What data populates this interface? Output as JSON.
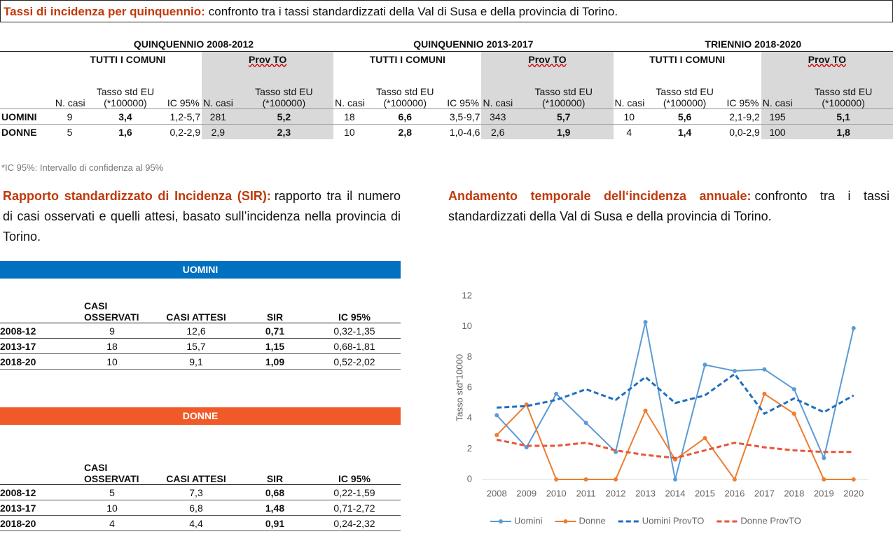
{
  "header": {
    "title": "Tassi di incidenza per quinquennio:",
    "text": "confronto tra i tassi standardizzati della Val di Susa e della provincia di Torino."
  },
  "incidence_table": {
    "periods": [
      "QUINQUENNIO 2008-2012",
      "QUINQUENNIO 2013-2017",
      "TRIENNIO 2018-2020"
    ],
    "groups": [
      "TUTTI I COMUNI",
      "Prov TO"
    ],
    "columns": [
      "N. casi",
      {
        "label": "Tasso std EU",
        "unit": "(*100000)"
      },
      "IC 95%",
      "N. casi",
      {
        "label": "Tasso std EU",
        "unit": "(*100000)"
      }
    ],
    "rows": [
      {
        "label": "UOMINI",
        "cells": [
          "9",
          "3,4",
          "1,2-5,7",
          "281",
          "5,2",
          "18",
          "6,6",
          "3,5-9,7",
          "343",
          "5,7",
          "10",
          "5,6",
          "2,1-9,2",
          "195",
          "5,1"
        ]
      },
      {
        "label": "DONNE",
        "cells": [
          "5",
          "1,6",
          "0,2-2,9",
          "2,9",
          "2,3",
          "10",
          "2,8",
          "1,0-4,6",
          "2,6",
          "1,9",
          "4",
          "1,4",
          "0,0-2,9",
          "100",
          "1,8"
        ]
      }
    ]
  },
  "footnote": "*IC 95%: Intervallo di confidenza al 95%",
  "sir": {
    "title": "Rapporto standardizzato di Incidenza (SIR):",
    "text": "rapporto tra il numero di casi osservati e quelli attesi, basato sull’incidenza nella provincia di Torino.",
    "columns": [
      "CASI OSSERVATI",
      "CASI ATTESI",
      "SIR",
      "IC 95%"
    ],
    "tables": [
      {
        "label": "UOMINI",
        "rows": [
          [
            "2008-12",
            "9",
            "12,6",
            "0,71",
            "0,32-1,35"
          ],
          [
            "2013-17",
            "18",
            "15,7",
            "1,15",
            "0,68-1,81"
          ],
          [
            "2018-20",
            "10",
            "9,1",
            "1,09",
            "0,52-2,02"
          ]
        ]
      },
      {
        "label": "DONNE",
        "rows": [
          [
            "2008-12",
            "5",
            "7,3",
            "0,68",
            "0,22-1,59"
          ],
          [
            "2013-17",
            "10",
            "6,8",
            "1,48",
            "0,71-2,72"
          ],
          [
            "2018-20",
            "4",
            "4,4",
            "0,91",
            "0,24-2,32"
          ]
        ]
      }
    ]
  },
  "trend": {
    "title": "Andamento temporale dell‘incidenza annuale:",
    "text": "confronto tra i tassi standardizzati della Val di Susa e della provincia di Torino."
  },
  "chart_data": {
    "type": "line",
    "y_label": "Tasso std*10000",
    "categories": [
      "2008",
      "2009",
      "2010",
      "2011",
      "2012",
      "2013",
      "2014",
      "2015",
      "2016",
      "2017",
      "2018",
      "2019",
      "2020"
    ],
    "ylim": [
      0,
      12
    ],
    "yticks": [
      0,
      2,
      4,
      6,
      8,
      10,
      12
    ],
    "grid": false,
    "series": [
      {
        "name": "Uomini",
        "color": "#5b9bd5",
        "line_style": "solid",
        "values": [
          4.2,
          2.1,
          5.6,
          3.7,
          1.8,
          10.3,
          0,
          7.5,
          7.1,
          7.2,
          5.9,
          1.4,
          9.9
        ]
      },
      {
        "name": "Donne",
        "color": "#ed7d31",
        "line_style": "solid",
        "values": [
          2.9,
          4.9,
          0,
          0,
          0,
          4.5,
          1.3,
          2.7,
          0,
          5.6,
          4.3,
          0,
          0
        ]
      },
      {
        "name": "Uomini ProvTO",
        "color": "#1f6fc0",
        "line_style": "dashed",
        "values": [
          4.7,
          4.8,
          5.2,
          5.9,
          5.2,
          6.7,
          5.0,
          5.5,
          6.9,
          4.3,
          5.3,
          4.4,
          5.5
        ]
      },
      {
        "name": "Donne ProvTO",
        "color": "#e8553a",
        "line_style": "dashed",
        "values": [
          2.6,
          2.2,
          2.2,
          2.4,
          1.9,
          1.6,
          1.4,
          1.9,
          2.4,
          2.1,
          1.9,
          1.8,
          1.8
        ]
      }
    ],
    "legend": "bottom"
  }
}
